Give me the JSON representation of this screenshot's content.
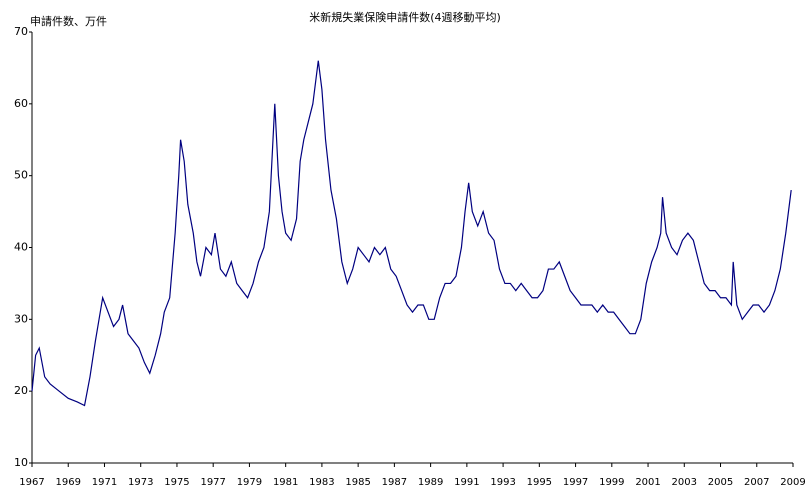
{
  "chart_data": {
    "type": "line",
    "title": "米新規失業保険申請件数(4週移動平均)",
    "y_axis_label": "申請件数、万件",
    "xlim": [
      1967,
      2009
    ],
    "xticks": [
      1967,
      1969,
      1971,
      1973,
      1975,
      1977,
      1979,
      1981,
      1983,
      1985,
      1987,
      1989,
      1991,
      1993,
      1995,
      1997,
      1999,
      2001,
      2003,
      2005,
      2007,
      2009
    ],
    "ylim": [
      10,
      70
    ],
    "yticks": [
      10,
      20,
      30,
      40,
      50,
      60,
      70
    ],
    "grid": false,
    "series": [
      {
        "name": "申請件数",
        "color": "#000080",
        "x": [
          1967.0,
          1967.2,
          1967.4,
          1967.7,
          1968.0,
          1968.5,
          1969.0,
          1969.5,
          1969.9,
          1970.2,
          1970.5,
          1970.7,
          1970.9,
          1971.2,
          1971.5,
          1971.8,
          1972.0,
          1972.3,
          1972.6,
          1972.9,
          1973.2,
          1973.5,
          1973.8,
          1974.1,
          1974.3,
          1974.6,
          1974.9,
          1975.1,
          1975.2,
          1975.4,
          1975.6,
          1975.9,
          1976.1,
          1976.3,
          1976.6,
          1976.9,
          1977.1,
          1977.4,
          1977.7,
          1978.0,
          1978.3,
          1978.6,
          1978.9,
          1979.2,
          1979.5,
          1979.8,
          1980.1,
          1980.3,
          1980.4,
          1980.6,
          1980.8,
          1981.0,
          1981.3,
          1981.6,
          1981.8,
          1982.0,
          1982.3,
          1982.5,
          1982.8,
          1983.0,
          1983.2,
          1983.5,
          1983.8,
          1984.1,
          1984.4,
          1984.7,
          1985.0,
          1985.3,
          1985.6,
          1985.9,
          1986.2,
          1986.5,
          1986.8,
          1987.1,
          1987.4,
          1987.7,
          1988.0,
          1988.3,
          1988.6,
          1988.9,
          1989.2,
          1989.5,
          1989.8,
          1990.1,
          1990.4,
          1990.7,
          1990.9,
          1991.1,
          1991.3,
          1991.6,
          1991.9,
          1992.2,
          1992.5,
          1992.8,
          1993.1,
          1993.4,
          1993.7,
          1994.0,
          1994.3,
          1994.6,
          1994.9,
          1995.2,
          1995.5,
          1995.8,
          1996.1,
          1996.4,
          1996.7,
          1997.0,
          1997.3,
          1997.6,
          1997.9,
          1998.2,
          1998.5,
          1998.8,
          1999.1,
          1999.4,
          1999.7,
          2000.0,
          2000.3,
          2000.6,
          2000.9,
          2001.2,
          2001.5,
          2001.7,
          2001.8,
          2002.0,
          2002.3,
          2002.6,
          2002.9,
          2003.2,
          2003.5,
          2003.8,
          2004.1,
          2004.4,
          2004.7,
          2005.0,
          2005.3,
          2005.6,
          2005.7,
          2005.9,
          2006.2,
          2006.5,
          2006.8,
          2007.1,
          2007.4,
          2007.7,
          2008.0,
          2008.3,
          2008.6,
          2008.9
        ],
        "values": [
          20,
          25,
          26,
          22,
          21,
          20,
          19,
          18.5,
          18,
          22,
          27,
          30,
          33,
          31,
          29,
          30,
          32,
          28,
          27,
          26,
          24,
          22.5,
          25,
          28,
          31,
          33,
          42,
          50,
          55,
          52,
          46,
          42,
          38,
          36,
          40,
          39,
          42,
          37,
          36,
          38,
          35,
          34,
          33,
          35,
          38,
          40,
          45,
          55,
          60,
          50,
          45,
          42,
          41,
          44,
          52,
          55,
          58,
          60,
          66,
          62,
          55,
          48,
          44,
          38,
          35,
          37,
          40,
          39,
          38,
          40,
          39,
          40,
          37,
          36,
          34,
          32,
          31,
          32,
          32,
          30,
          30,
          33,
          35,
          35,
          36,
          40,
          45,
          49,
          45,
          43,
          45,
          42,
          41,
          37,
          35,
          35,
          34,
          35,
          34,
          33,
          33,
          34,
          37,
          37,
          38,
          36,
          34,
          33,
          32,
          32,
          32,
          31,
          32,
          31,
          31,
          30,
          29,
          28,
          28,
          30,
          35,
          38,
          40,
          42,
          47,
          42,
          40,
          39,
          41,
          42,
          41,
          38,
          35,
          34,
          34,
          33,
          33,
          32,
          38,
          32,
          30,
          31,
          32,
          32,
          31,
          32,
          34,
          37,
          42,
          48
        ]
      }
    ]
  }
}
